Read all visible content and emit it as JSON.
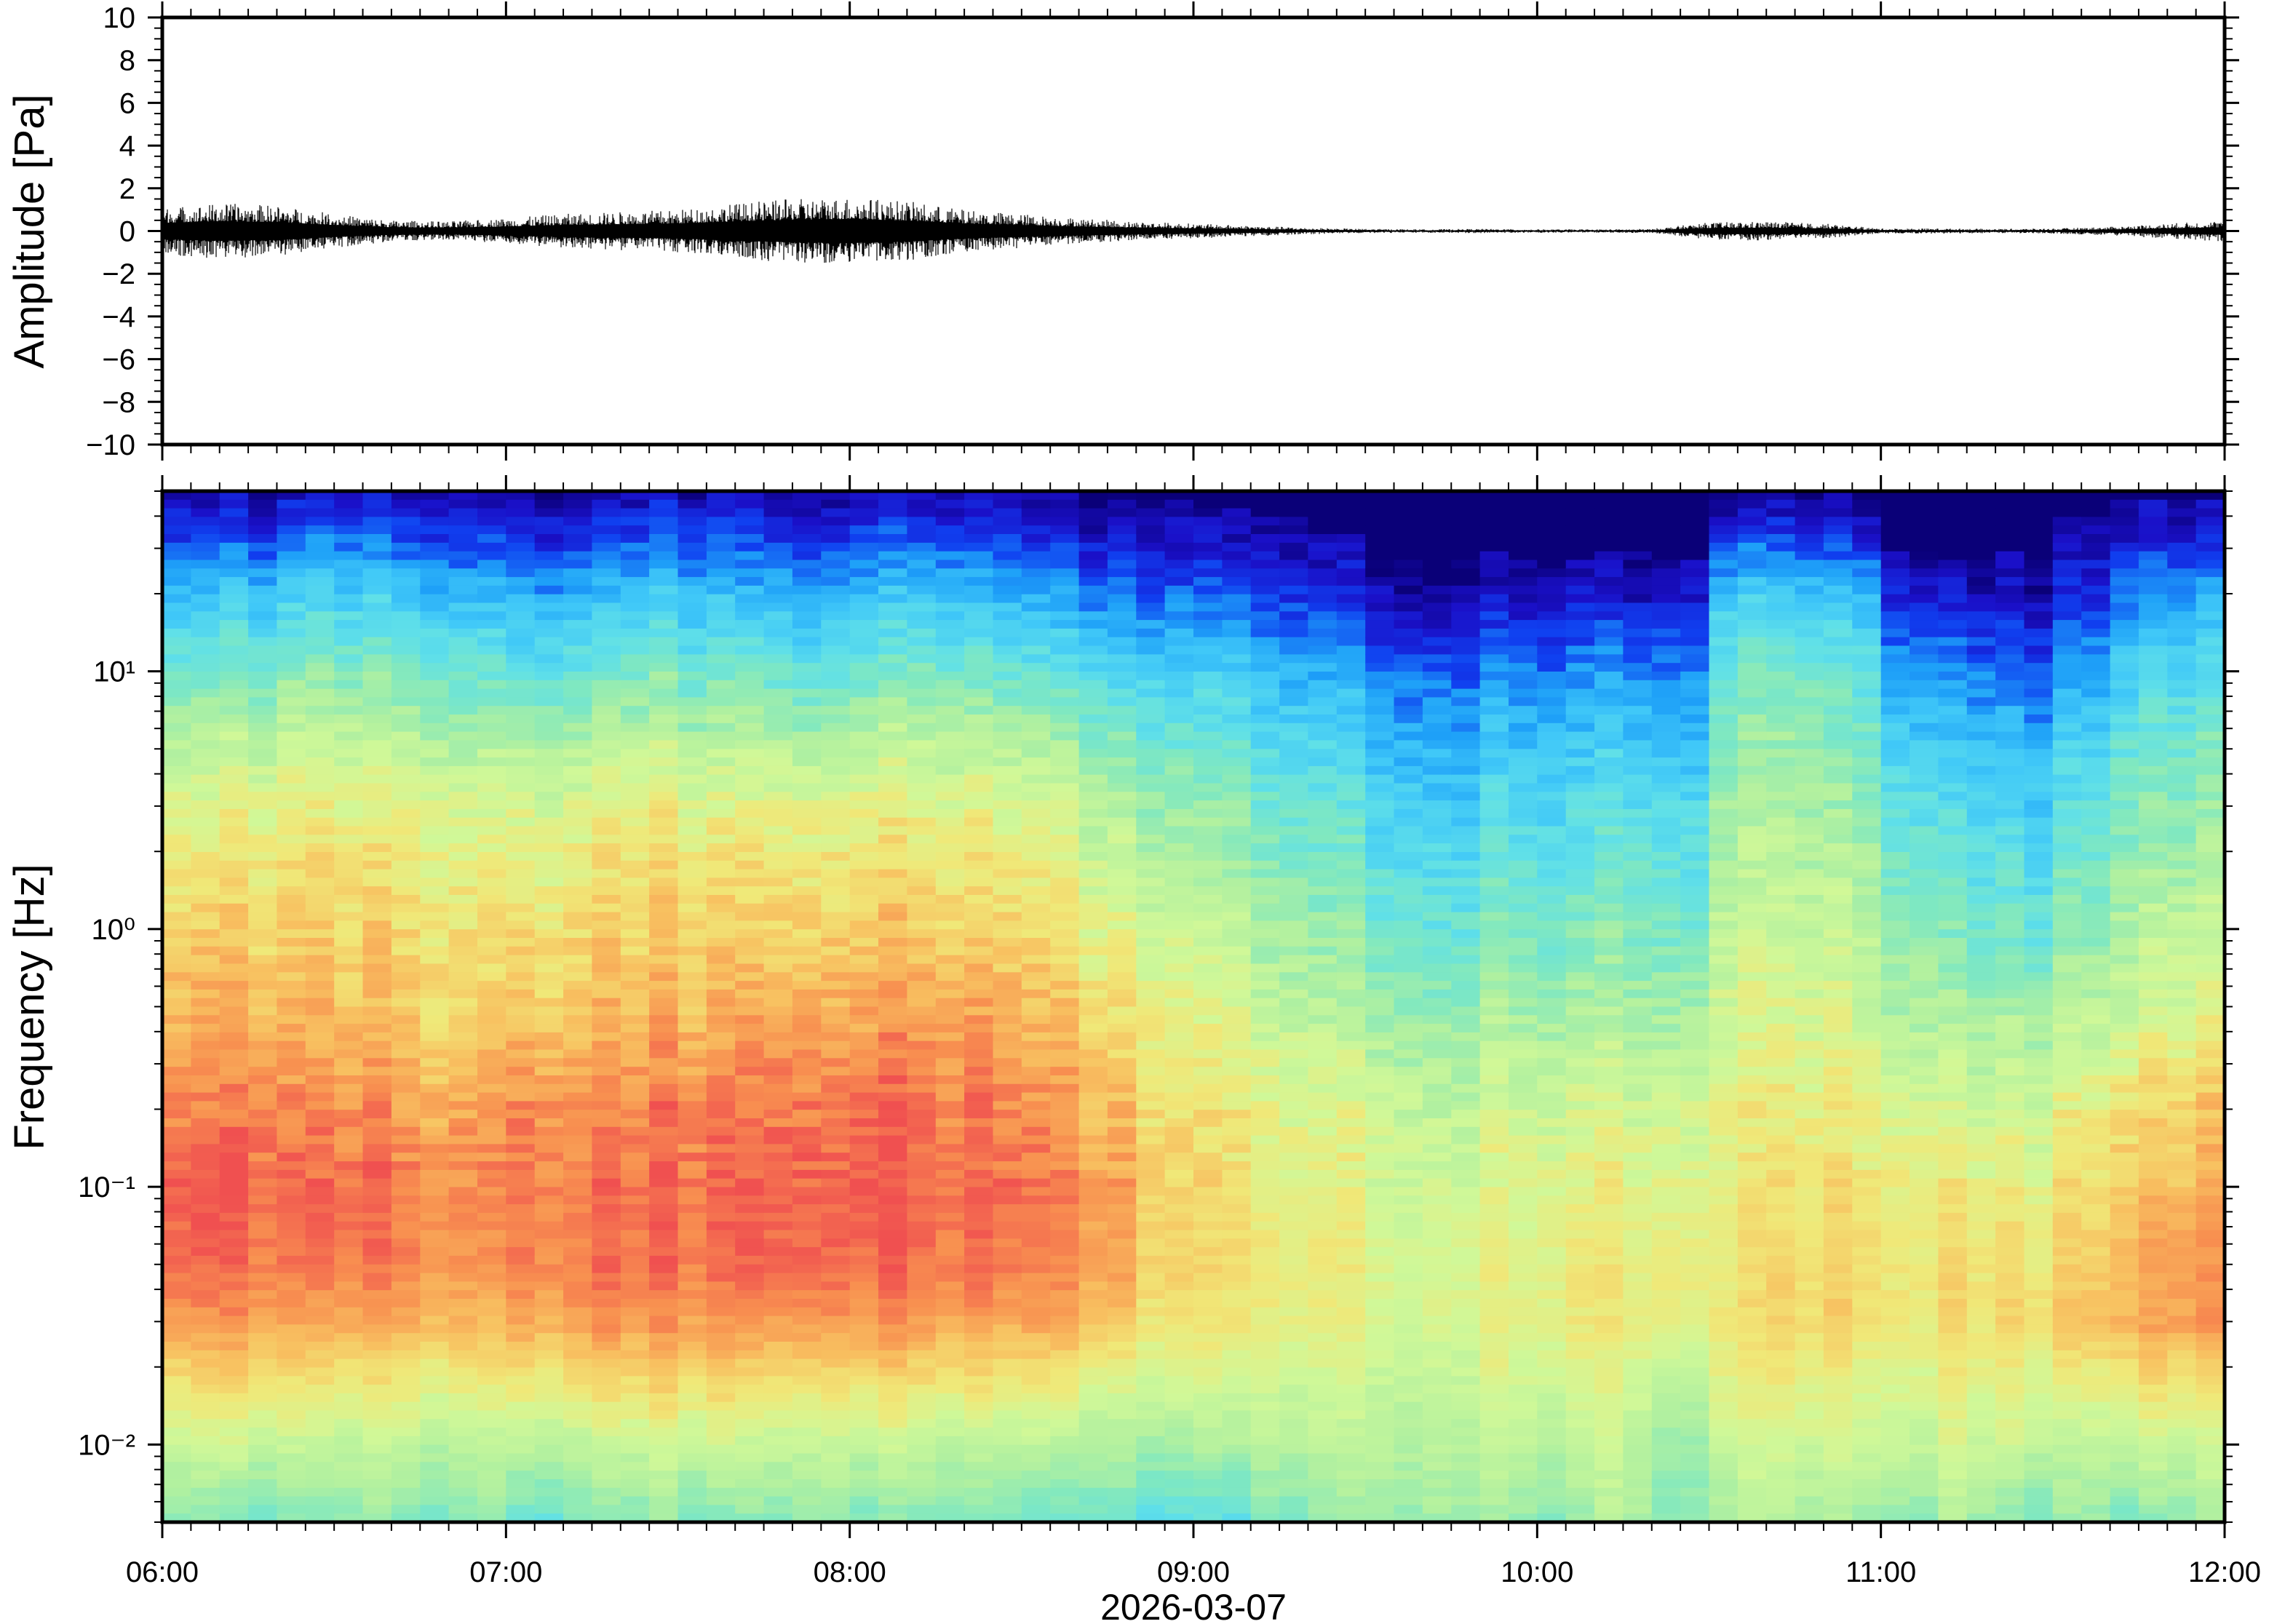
{
  "chart_data": [
    {
      "type": "line",
      "ylabel": "Amplitude [Pa]",
      "ylim": [
        -10,
        10
      ],
      "y_tick_labels": [
        "10",
        "8",
        "6",
        "4",
        "2",
        "0",
        "−2",
        "−4",
        "−6",
        "−8",
        "−10"
      ],
      "y_tick_values": [
        10,
        8,
        6,
        4,
        2,
        0,
        -2,
        -4,
        -6,
        -8,
        -10
      ],
      "xlim": [
        "06:00",
        "12:00"
      ],
      "envelope_times": [
        "06:00",
        "06:10",
        "06:20",
        "06:30",
        "06:40",
        "06:50",
        "07:00",
        "07:10",
        "07:20",
        "07:30",
        "07:40",
        "07:50",
        "08:00",
        "08:10",
        "08:20",
        "08:30",
        "08:40",
        "08:50",
        "09:00",
        "09:10",
        "09:20",
        "09:30",
        "09:40",
        "09:50",
        "10:00",
        "10:10",
        "10:20",
        "10:30",
        "10:40",
        "10:50",
        "11:00",
        "11:10",
        "11:20",
        "11:30",
        "11:40",
        "11:50",
        "12:00"
      ],
      "envelope_peak_pa": [
        1.1,
        1.3,
        1.2,
        0.8,
        0.5,
        0.45,
        0.6,
        0.8,
        0.9,
        1.0,
        1.3,
        1.5,
        1.6,
        1.4,
        1.0,
        0.8,
        0.6,
        0.45,
        0.35,
        0.25,
        0.15,
        0.1,
        0.08,
        0.1,
        0.08,
        0.08,
        0.1,
        0.4,
        0.45,
        0.35,
        0.12,
        0.12,
        0.1,
        0.12,
        0.2,
        0.35,
        0.5
      ],
      "color": "#000000"
    },
    {
      "type": "heatmap",
      "ylabel": "Frequency [Hz]",
      "xlabel": "2026-03-07",
      "yscale": "log",
      "ylim": [
        0.005,
        50
      ],
      "y_tick_labels": [
        "10¹",
        "10⁰",
        "10⁻¹",
        "10⁻²"
      ],
      "y_tick_values": [
        10,
        1,
        0.1,
        0.01
      ],
      "x_tick_labels": [
        "06:00",
        "07:00",
        "08:00",
        "09:00",
        "10:00",
        "11:00",
        "12:00"
      ],
      "time_bin_minutes": 10,
      "frequencies_hz": [
        50,
        30,
        20,
        10,
        5,
        3,
        2,
        1,
        0.5,
        0.3,
        0.2,
        0.1,
        0.05,
        0.03,
        0.02,
        0.01,
        0.005
      ],
      "relative_power": [
        [
          0.04,
          0.05,
          0.07,
          0.06,
          0.06,
          0.05,
          0.05,
          0.04,
          0.06,
          0.05,
          0.05,
          0.04,
          0.06,
          0.05,
          0.04,
          0.04,
          0.03,
          0.02,
          0.01,
          0,
          0,
          0,
          0,
          0,
          0,
          0,
          0,
          0.02,
          0.03,
          0.02,
          0,
          0,
          0,
          0,
          0.01,
          0.02
        ],
        [
          0.16,
          0.2,
          0.24,
          0.22,
          0.2,
          0.18,
          0.16,
          0.18,
          0.22,
          0.2,
          0.18,
          0.16,
          0.2,
          0.22,
          0.18,
          0.16,
          0.12,
          0.1,
          0.08,
          0.06,
          0.04,
          0.02,
          0.02,
          0.03,
          0.02,
          0.03,
          0.02,
          0.2,
          0.2,
          0.16,
          0.03,
          0.02,
          0.03,
          0.06,
          0.12,
          0.14
        ],
        [
          0.3,
          0.34,
          0.36,
          0.34,
          0.32,
          0.3,
          0.28,
          0.3,
          0.34,
          0.32,
          0.3,
          0.28,
          0.32,
          0.34,
          0.3,
          0.28,
          0.24,
          0.2,
          0.18,
          0.14,
          0.1,
          0.07,
          0.06,
          0.08,
          0.07,
          0.09,
          0.07,
          0.34,
          0.36,
          0.3,
          0.1,
          0.08,
          0.06,
          0.12,
          0.22,
          0.26
        ],
        [
          0.46,
          0.5,
          0.52,
          0.5,
          0.48,
          0.46,
          0.44,
          0.46,
          0.5,
          0.48,
          0.46,
          0.44,
          0.48,
          0.5,
          0.46,
          0.44,
          0.4,
          0.36,
          0.34,
          0.3,
          0.26,
          0.22,
          0.2,
          0.24,
          0.22,
          0.26,
          0.2,
          0.48,
          0.5,
          0.44,
          0.26,
          0.22,
          0.2,
          0.26,
          0.36,
          0.4
        ],
        [
          0.6,
          0.64,
          0.66,
          0.64,
          0.62,
          0.6,
          0.6,
          0.62,
          0.64,
          0.62,
          0.62,
          0.6,
          0.64,
          0.64,
          0.62,
          0.6,
          0.54,
          0.48,
          0.45,
          0.4,
          0.36,
          0.32,
          0.3,
          0.34,
          0.32,
          0.36,
          0.3,
          0.54,
          0.56,
          0.5,
          0.36,
          0.32,
          0.3,
          0.36,
          0.46,
          0.5
        ],
        [
          0.68,
          0.72,
          0.72,
          0.7,
          0.7,
          0.68,
          0.68,
          0.7,
          0.72,
          0.7,
          0.7,
          0.7,
          0.72,
          0.72,
          0.7,
          0.68,
          0.62,
          0.56,
          0.52,
          0.46,
          0.42,
          0.38,
          0.36,
          0.4,
          0.38,
          0.42,
          0.36,
          0.58,
          0.6,
          0.54,
          0.42,
          0.38,
          0.36,
          0.42,
          0.5,
          0.54
        ],
        [
          0.72,
          0.75,
          0.76,
          0.74,
          0.73,
          0.72,
          0.72,
          0.74,
          0.76,
          0.75,
          0.75,
          0.74,
          0.76,
          0.76,
          0.74,
          0.72,
          0.66,
          0.6,
          0.56,
          0.5,
          0.46,
          0.42,
          0.4,
          0.44,
          0.42,
          0.46,
          0.4,
          0.6,
          0.62,
          0.58,
          0.46,
          0.42,
          0.4,
          0.46,
          0.54,
          0.58
        ],
        [
          0.78,
          0.8,
          0.8,
          0.78,
          0.77,
          0.76,
          0.77,
          0.79,
          0.8,
          0.8,
          0.8,
          0.8,
          0.82,
          0.82,
          0.8,
          0.78,
          0.72,
          0.66,
          0.62,
          0.56,
          0.52,
          0.48,
          0.46,
          0.5,
          0.48,
          0.52,
          0.46,
          0.64,
          0.66,
          0.62,
          0.52,
          0.48,
          0.46,
          0.52,
          0.6,
          0.64
        ],
        [
          0.84,
          0.85,
          0.84,
          0.82,
          0.8,
          0.8,
          0.82,
          0.84,
          0.85,
          0.85,
          0.86,
          0.86,
          0.88,
          0.88,
          0.86,
          0.84,
          0.78,
          0.72,
          0.68,
          0.62,
          0.58,
          0.56,
          0.54,
          0.58,
          0.56,
          0.58,
          0.54,
          0.68,
          0.7,
          0.66,
          0.58,
          0.56,
          0.56,
          0.6,
          0.66,
          0.7
        ],
        [
          0.88,
          0.9,
          0.88,
          0.86,
          0.84,
          0.84,
          0.88,
          0.88,
          0.9,
          0.9,
          0.92,
          0.92,
          0.92,
          0.92,
          0.9,
          0.88,
          0.82,
          0.76,
          0.72,
          0.68,
          0.64,
          0.62,
          0.6,
          0.64,
          0.62,
          0.64,
          0.6,
          0.7,
          0.72,
          0.7,
          0.64,
          0.62,
          0.62,
          0.66,
          0.72,
          0.76
        ],
        [
          0.92,
          0.94,
          0.92,
          0.9,
          0.88,
          0.88,
          0.92,
          0.92,
          0.94,
          0.94,
          0.95,
          0.95,
          0.96,
          0.95,
          0.94,
          0.92,
          0.86,
          0.78,
          0.74,
          0.7,
          0.68,
          0.66,
          0.64,
          0.68,
          0.66,
          0.68,
          0.64,
          0.72,
          0.74,
          0.72,
          0.68,
          0.66,
          0.66,
          0.72,
          0.78,
          0.82
        ],
        [
          0.97,
          0.98,
          0.97,
          0.95,
          0.93,
          0.92,
          0.95,
          0.96,
          0.97,
          0.97,
          0.98,
          0.98,
          0.99,
          0.98,
          0.97,
          0.95,
          0.9,
          0.8,
          0.76,
          0.72,
          0.7,
          0.68,
          0.68,
          0.7,
          0.7,
          0.72,
          0.68,
          0.74,
          0.76,
          0.76,
          0.72,
          0.72,
          0.72,
          0.76,
          0.82,
          0.86
        ],
        [
          0.95,
          0.96,
          0.94,
          0.93,
          0.92,
          0.9,
          0.94,
          0.95,
          0.96,
          0.96,
          0.97,
          0.97,
          0.97,
          0.96,
          0.95,
          0.94,
          0.9,
          0.8,
          0.76,
          0.74,
          0.72,
          0.7,
          0.7,
          0.72,
          0.72,
          0.74,
          0.7,
          0.76,
          0.8,
          0.78,
          0.74,
          0.76,
          0.76,
          0.8,
          0.86,
          0.9
        ],
        [
          0.88,
          0.9,
          0.88,
          0.86,
          0.86,
          0.84,
          0.88,
          0.9,
          0.9,
          0.9,
          0.9,
          0.9,
          0.9,
          0.9,
          0.88,
          0.88,
          0.84,
          0.76,
          0.74,
          0.72,
          0.7,
          0.7,
          0.7,
          0.72,
          0.72,
          0.74,
          0.7,
          0.76,
          0.8,
          0.78,
          0.74,
          0.76,
          0.78,
          0.82,
          0.86,
          0.9
        ],
        [
          0.78,
          0.8,
          0.78,
          0.76,
          0.76,
          0.76,
          0.78,
          0.8,
          0.82,
          0.82,
          0.8,
          0.8,
          0.8,
          0.8,
          0.78,
          0.78,
          0.74,
          0.7,
          0.68,
          0.68,
          0.66,
          0.66,
          0.66,
          0.7,
          0.68,
          0.7,
          0.62,
          0.74,
          0.76,
          0.72,
          0.7,
          0.72,
          0.72,
          0.74,
          0.78,
          0.8
        ],
        [
          0.64,
          0.66,
          0.64,
          0.62,
          0.62,
          0.62,
          0.62,
          0.64,
          0.66,
          0.66,
          0.64,
          0.64,
          0.64,
          0.64,
          0.62,
          0.62,
          0.6,
          0.58,
          0.58,
          0.6,
          0.6,
          0.62,
          0.62,
          0.64,
          0.62,
          0.64,
          0.52,
          0.66,
          0.68,
          0.66,
          0.64,
          0.66,
          0.64,
          0.62,
          0.64,
          0.66
        ],
        [
          0.5,
          0.48,
          0.5,
          0.52,
          0.5,
          0.52,
          0.46,
          0.5,
          0.52,
          0.5,
          0.52,
          0.54,
          0.5,
          0.52,
          0.5,
          0.48,
          0.5,
          0.42,
          0.4,
          0.5,
          0.52,
          0.56,
          0.58,
          0.56,
          0.52,
          0.6,
          0.5,
          0.58,
          0.6,
          0.56,
          0.52,
          0.56,
          0.5,
          0.54,
          0.5,
          0.56
        ]
      ],
      "colormap": [
        "#0a0078",
        "#1a10c8",
        "#1040f0",
        "#1ea0f8",
        "#40c8f8",
        "#60e0e8",
        "#80e8c0",
        "#b0f0a0",
        "#d0f898",
        "#f0e878",
        "#f8c060",
        "#f89050",
        "#f05050"
      ]
    }
  ]
}
